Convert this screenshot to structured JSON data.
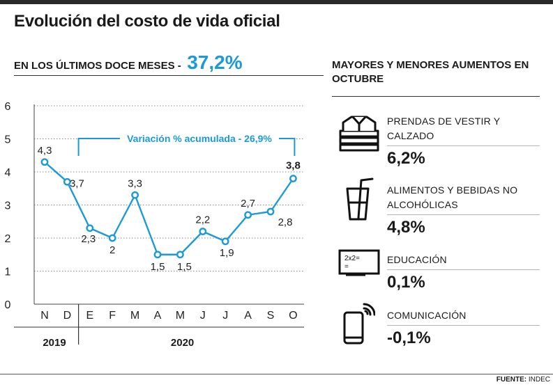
{
  "title": "Evolución del costo de vida oficial",
  "subheading": {
    "label": "EN LOS ÚLTIMOS DOCE MESES -",
    "value": "37,2%"
  },
  "chart_data": {
    "type": "line",
    "title": "",
    "categories": [
      "N",
      "D",
      "E",
      "F",
      "M",
      "A",
      "M",
      "J",
      "J",
      "A",
      "S",
      "O"
    ],
    "values": [
      4.3,
      3.7,
      2.3,
      2,
      3.3,
      1.5,
      1.5,
      2.2,
      1.9,
      2.7,
      2.8,
      3.8
    ],
    "value_labels": [
      "4,3",
      "3,7",
      "2,3",
      "2",
      "3,3",
      "1,5",
      "1,5",
      "2,2",
      "1,9",
      "2,7",
      "2,8",
      "3,8"
    ],
    "y_ticks": [
      "0",
      "1",
      "2",
      "3",
      "4",
      "5",
      "6"
    ],
    "ylim": [
      0,
      6
    ],
    "years": [
      {
        "label": "2019",
        "from": 0,
        "to": 1
      },
      {
        "label": "2020",
        "from": 2,
        "to": 11
      }
    ],
    "annotation": {
      "text": "Variación % acumulada - 26,9%",
      "from": 1.5,
      "to": 11
    },
    "series_color": "#1b9ad6",
    "grid": "dotted horizontal"
  },
  "right_panel": {
    "heading": "MAYORES Y MENORES AUMENTOS EN OCTUBRE",
    "items": [
      {
        "icon": "clothes-stack-icon",
        "label": "PRENDAS DE VESTIR Y CALZADO",
        "value": "6,2%"
      },
      {
        "icon": "drink-glass-icon",
        "label": "ALIMENTOS Y BEBIDAS NO ALCOHÓLICAS",
        "value": "4,8%"
      },
      {
        "icon": "blackboard-icon",
        "label": "EDUCACIÓN",
        "value": "0,1%"
      },
      {
        "icon": "smartphone-icon",
        "label": "COMUNICACIÓN",
        "value": "-0,1%"
      }
    ],
    "blackboard_text": "2x2=\n="
  },
  "source": {
    "label": "FUENTE:",
    "value": "INDEC"
  }
}
